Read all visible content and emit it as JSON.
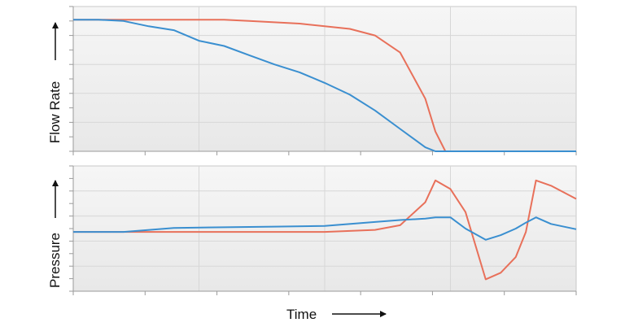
{
  "chart_data": [
    {
      "type": "line",
      "panel": "top",
      "xlabel": "",
      "ylabel": "Flow Rate",
      "x_ticks_count": 8,
      "y_ticks_count": 11,
      "x": [
        0,
        0.05,
        0.1,
        0.15,
        0.2,
        0.25,
        0.3,
        0.35,
        0.4,
        0.45,
        0.5,
        0.55,
        0.6,
        0.65,
        0.7,
        0.72,
        0.74,
        0.75,
        0.8,
        0.85,
        0.9,
        0.95,
        1.0
      ],
      "series": [
        {
          "color": "#e8705a",
          "values": [
            1.0,
            1.0,
            1.0,
            1.0,
            1.0,
            1.0,
            1.0,
            0.99,
            0.98,
            0.97,
            0.95,
            0.93,
            0.88,
            0.75,
            0.4,
            0.15,
            0.0,
            0.0,
            0.0,
            0.0,
            0.0,
            0.0,
            0.0
          ]
        },
        {
          "color": "#3a8fd0",
          "values": [
            1.0,
            1.0,
            0.99,
            0.95,
            0.92,
            0.84,
            0.8,
            0.73,
            0.66,
            0.6,
            0.52,
            0.43,
            0.31,
            0.17,
            0.03,
            0.0,
            0.0,
            0.0,
            0.0,
            0.0,
            0.0,
            0.0,
            0.0
          ]
        }
      ],
      "ylim": [
        0,
        1.1
      ],
      "grid": true
    },
    {
      "type": "line",
      "panel": "bottom",
      "xlabel": "Time",
      "ylabel": "Pressure",
      "x_ticks_count": 8,
      "y_ticks_count": 11,
      "x": [
        0,
        0.1,
        0.2,
        0.3,
        0.4,
        0.5,
        0.6,
        0.65,
        0.7,
        0.72,
        0.75,
        0.78,
        0.82,
        0.85,
        0.88,
        0.9,
        0.92,
        0.95,
        1.0
      ],
      "series": [
        {
          "color": "#e8705a",
          "values": [
            0.0,
            0.0,
            0.0,
            0.0,
            0.0,
            0.0,
            0.03,
            0.1,
            0.45,
            0.78,
            0.65,
            0.3,
            -0.72,
            -0.62,
            -0.38,
            0.0,
            0.78,
            0.7,
            0.5
          ]
        },
        {
          "color": "#3a8fd0",
          "values": [
            0.0,
            0.0,
            0.06,
            0.07,
            0.08,
            0.09,
            0.15,
            0.18,
            0.2,
            0.22,
            0.22,
            0.05,
            -0.12,
            -0.05,
            0.05,
            0.14,
            0.22,
            0.12,
            0.04
          ]
        }
      ],
      "ylim": [
        -0.9,
        1.0
      ],
      "grid": true
    }
  ]
}
